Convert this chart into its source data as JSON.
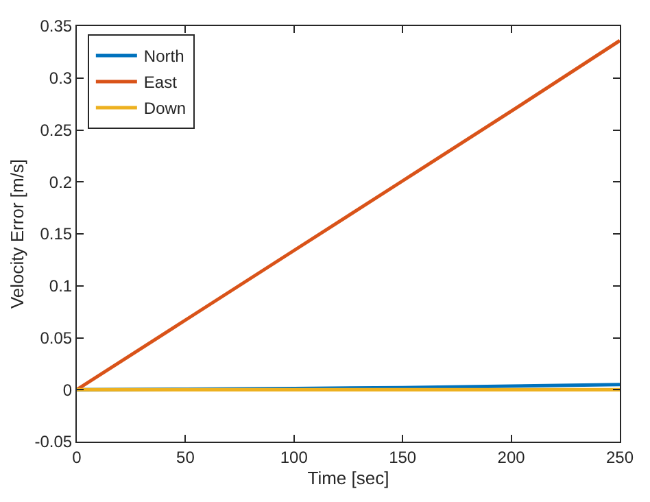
{
  "chart_data": {
    "type": "line",
    "xlabel": "Time [sec]",
    "ylabel": "Velocity Error [m/s]",
    "x": [
      0,
      50,
      100,
      150,
      200,
      250
    ],
    "series": [
      {
        "name": "North",
        "color": "#0072bd",
        "values": [
          0,
          0.0005,
          0.0012,
          0.002,
          0.0035,
          0.005
        ]
      },
      {
        "name": "East",
        "color": "#d95319",
        "values": [
          0,
          0.067,
          0.134,
          0.201,
          0.268,
          0.336
        ]
      },
      {
        "name": "Down",
        "color": "#edb120",
        "values": [
          0,
          0,
          0,
          0,
          0,
          0
        ]
      }
    ],
    "xlim": [
      0,
      250
    ],
    "xticks": [
      0,
      50,
      100,
      150,
      200,
      250
    ],
    "ylim": [
      -0.05,
      0.35
    ],
    "yticks": [
      -0.05,
      0,
      0.05,
      0.1,
      0.15,
      0.2,
      0.25,
      0.3,
      0.35
    ],
    "grid": false,
    "legend": "top left",
    "marker": "none",
    "line_style": "solid"
  }
}
